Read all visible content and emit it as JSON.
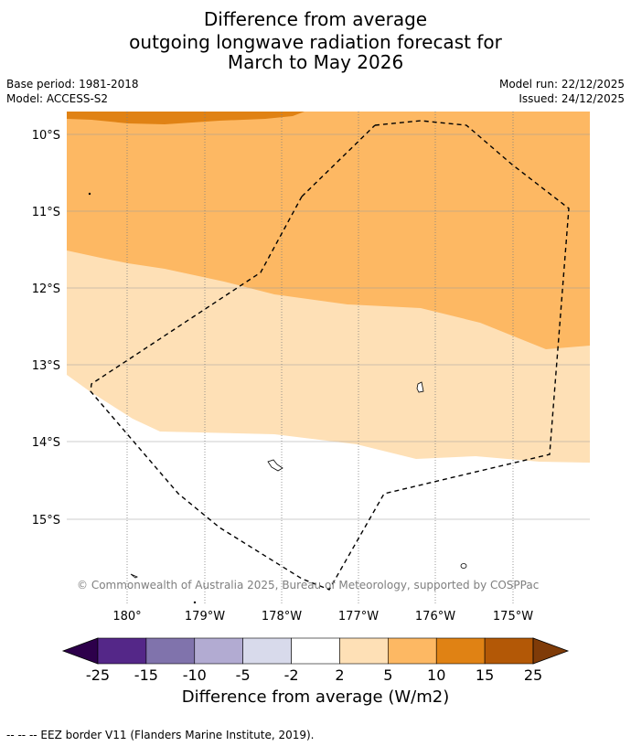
{
  "title": {
    "line1": "Difference from average",
    "line2": "outgoing longwave radiation forecast for",
    "line3": "March to May 2026"
  },
  "meta": {
    "base_period": "Base period: 1981-2018",
    "model": "Model: ACCESS-S2",
    "model_run": "Model run: 22/12/2025",
    "issued": "Issued: 24/12/2025"
  },
  "map": {
    "lat_labels": [
      "10°S",
      "11°S",
      "12°S",
      "13°S",
      "14°S",
      "15°S"
    ],
    "lon_labels": [
      "180°",
      "179°W",
      "178°W",
      "177°W",
      "176°W",
      "175°W"
    ],
    "credit": "© Commonwealth of Australia 2025, Bureau of Meteorology, supported by COSPPac",
    "colors": {
      "band_5_10": "#fdb863",
      "band_10_15": "#e08214",
      "band_2_5": "#fee0b6",
      "band_neutral": "#ffffff"
    }
  },
  "colorbar": {
    "ticks": [
      "-25",
      "-15",
      "-10",
      "-5",
      "-2",
      "2",
      "5",
      "10",
      "15",
      "25"
    ],
    "colors": [
      "#2d004b",
      "#542788",
      "#8073ac",
      "#b2abd2",
      "#d8daeb",
      "#ffffff",
      "#fee0b6",
      "#fdb863",
      "#e08214",
      "#b35806",
      "#7f3b08"
    ],
    "title": "Difference from average (W/m2)"
  },
  "legend": {
    "text": "--  --  -- EEZ border V11 (Flanders Marine Institute, 2019)."
  }
}
